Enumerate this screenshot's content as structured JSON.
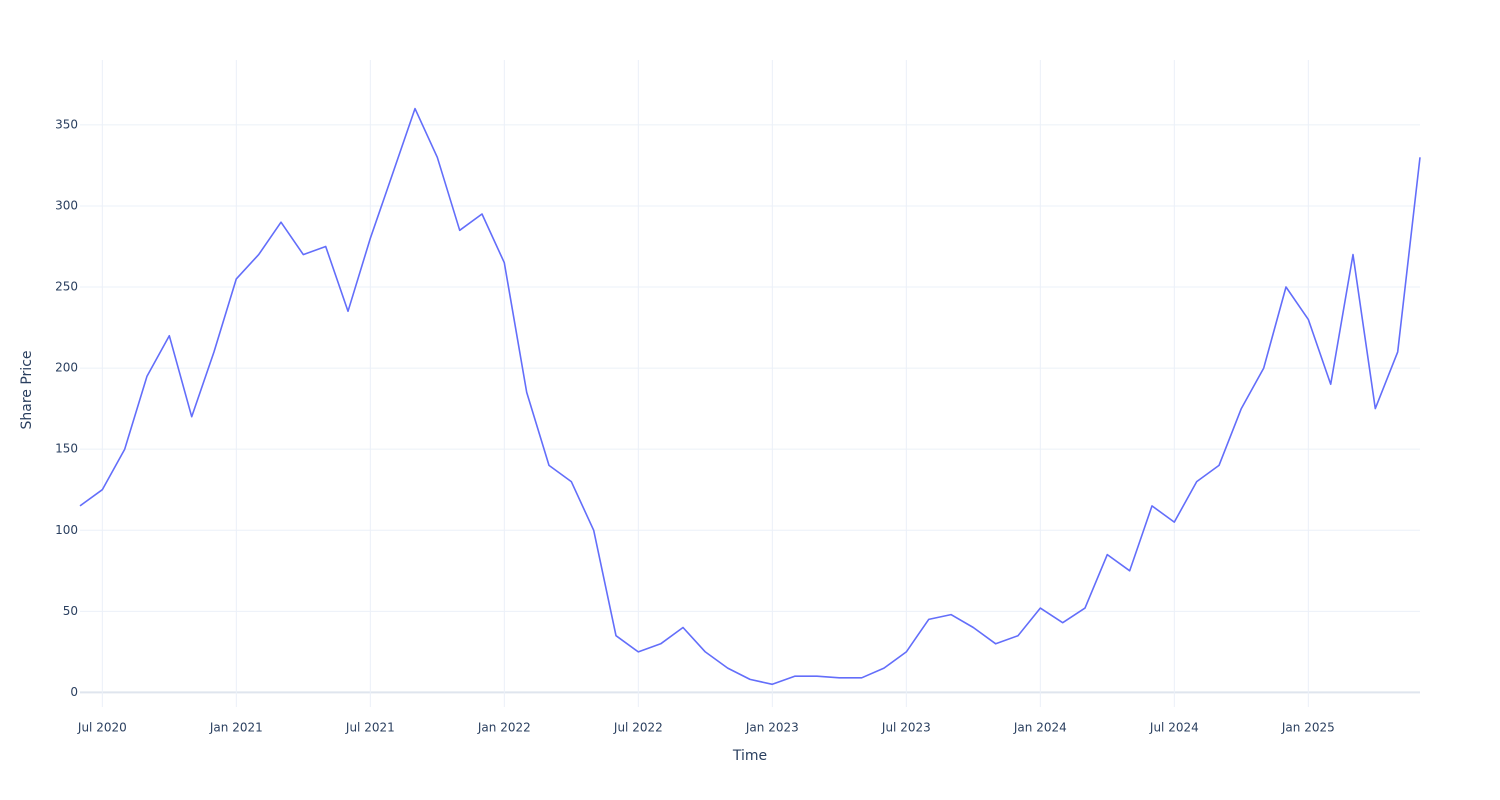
{
  "chart_data": {
    "type": "line",
    "xlabel": "Time",
    "ylabel": "Share Price",
    "color": "#636efa",
    "grid": true,
    "x": [
      "2020-06",
      "2020-07",
      "2020-08",
      "2020-09",
      "2020-10",
      "2020-11",
      "2020-12",
      "2021-01",
      "2021-02",
      "2021-03",
      "2021-04",
      "2021-05",
      "2021-06",
      "2021-07",
      "2021-08",
      "2021-09",
      "2021-10",
      "2021-11",
      "2021-12",
      "2022-01",
      "2022-02",
      "2022-03",
      "2022-04",
      "2022-05",
      "2022-06",
      "2022-07",
      "2022-08",
      "2022-09",
      "2022-10",
      "2022-11",
      "2022-12",
      "2023-01",
      "2023-02",
      "2023-03",
      "2023-04",
      "2023-05",
      "2023-06",
      "2023-07",
      "2023-08",
      "2023-09",
      "2023-10",
      "2023-11",
      "2023-12",
      "2024-01",
      "2024-02",
      "2024-03",
      "2024-04",
      "2024-05",
      "2024-06",
      "2024-07",
      "2024-08",
      "2024-09",
      "2024-10",
      "2024-11",
      "2024-12",
      "2025-01",
      "2025-02",
      "2025-03",
      "2025-04",
      "2025-05",
      "2025-06"
    ],
    "values": [
      115,
      125,
      150,
      195,
      220,
      170,
      210,
      255,
      270,
      290,
      270,
      275,
      235,
      280,
      320,
      360,
      330,
      285,
      295,
      265,
      185,
      140,
      130,
      100,
      35,
      25,
      30,
      40,
      25,
      15,
      8,
      5,
      10,
      10,
      9,
      9,
      15,
      25,
      45,
      48,
      40,
      30,
      35,
      52,
      43,
      52,
      85,
      75,
      115,
      105,
      130,
      140,
      175,
      200,
      250,
      230,
      190,
      270,
      175,
      210,
      330
    ],
    "xlim": [
      "2020-06",
      "2025-06"
    ],
    "xticks": [
      {
        "value": "2020-07",
        "label": "Jul 2020"
      },
      {
        "value": "2021-01",
        "label": "Jan 2021"
      },
      {
        "value": "2021-07",
        "label": "Jul 2021"
      },
      {
        "value": "2022-01",
        "label": "Jan 2022"
      },
      {
        "value": "2022-07",
        "label": "Jul 2022"
      },
      {
        "value": "2023-01",
        "label": "Jan 2023"
      },
      {
        "value": "2023-07",
        "label": "Jul 2023"
      },
      {
        "value": "2024-01",
        "label": "Jan 2024"
      },
      {
        "value": "2024-07",
        "label": "Jul 2024"
      },
      {
        "value": "2025-01",
        "label": "Jan 2025"
      }
    ],
    "ylim": [
      -9,
      390
    ],
    "yticks": [
      0,
      50,
      100,
      150,
      200,
      250,
      300,
      350
    ]
  }
}
